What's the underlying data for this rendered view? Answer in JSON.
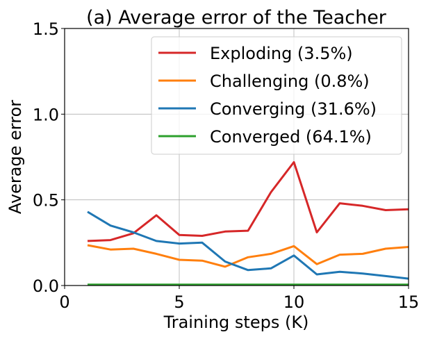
{
  "chart_data": {
    "type": "line",
    "title": "(a) Average error of the Teacher",
    "xlabel": "Training steps (K)",
    "ylabel": "Average error",
    "xlim": [
      0,
      15
    ],
    "ylim": [
      0,
      1.5
    ],
    "x_ticks": [
      0,
      5,
      10,
      15
    ],
    "x_tick_labels": [
      "0",
      "5",
      "10",
      "15"
    ],
    "y_ticks": [
      0,
      0.5,
      1.0,
      1.5
    ],
    "y_tick_labels": [
      "0.0",
      "0.5",
      "1.0",
      "1.5"
    ],
    "grid": true,
    "legend_position": "top-right",
    "x": [
      1,
      2,
      3,
      4,
      5,
      6,
      7,
      8,
      9,
      10,
      11,
      12,
      13,
      14,
      15
    ],
    "series": [
      {
        "name": "Exploding (3.5%)",
        "color": "#d62728",
        "values": [
          0.26,
          0.265,
          0.305,
          0.41,
          0.295,
          0.29,
          0.315,
          0.32,
          0.545,
          0.72,
          0.31,
          0.48,
          0.465,
          0.44,
          0.445
        ]
      },
      {
        "name": "Challenging (0.8%)",
        "color": "#ff7f0e",
        "values": [
          0.235,
          0.21,
          0.215,
          0.185,
          0.15,
          0.145,
          0.11,
          0.165,
          0.185,
          0.23,
          0.125,
          0.18,
          0.185,
          0.215,
          0.225
        ]
      },
      {
        "name": "Converging (31.6%)",
        "color": "#1f77b4",
        "values": [
          0.43,
          0.35,
          0.31,
          0.26,
          0.245,
          0.25,
          0.14,
          0.09,
          0.1,
          0.175,
          0.065,
          0.08,
          0.07,
          0.055,
          0.04
        ]
      },
      {
        "name": "Converged (64.1%)",
        "color": "#2ca02c",
        "values": [
          0.005,
          0.005,
          0.005,
          0.005,
          0.005,
          0.005,
          0.005,
          0.005,
          0.005,
          0.005,
          0.005,
          0.005,
          0.005,
          0.005,
          0.005
        ]
      }
    ]
  }
}
